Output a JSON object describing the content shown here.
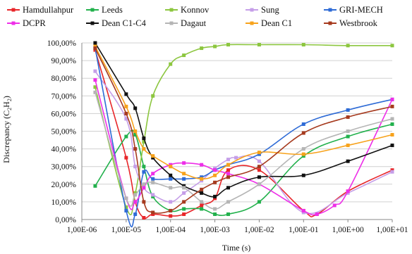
{
  "chart_data": {
    "type": "line",
    "xscale": "log",
    "xlabel": "Time (s)",
    "ylabel": "Discrepancy (C2H2)",
    "ylabel_main": "Discrepancy (C",
    "ylabel_sub": "2",
    "ylabel_mid": "H",
    "ylabel_sub2": "2",
    "ylabel_end": ")",
    "xlim": [
      1e-06,
      10
    ],
    "ylim": [
      0,
      100
    ],
    "grid": "horizontal",
    "legend_position": "top",
    "x_ticks": [
      {
        "v": 1e-06,
        "label": "1,00E-06"
      },
      {
        "v": 1e-05,
        "label": "1,00E-05"
      },
      {
        "v": 0.0001,
        "label": "1,00E-04"
      },
      {
        "v": 0.001,
        "label": "1,00E-03"
      },
      {
        "v": 0.01,
        "label": "1,00E-02"
      },
      {
        "v": 0.1,
        "label": "1,00E-01"
      },
      {
        "v": 1,
        "label": "1,00E+00"
      },
      {
        "v": 10,
        "label": "1,00E+01"
      }
    ],
    "y_ticks": [
      {
        "v": 0,
        "label": "0,00%"
      },
      {
        "v": 10,
        "label": "10,00%"
      },
      {
        "v": 20,
        "label": "20,00%"
      },
      {
        "v": 30,
        "label": "30,00%"
      },
      {
        "v": 40,
        "label": "40,00%"
      },
      {
        "v": 50,
        "label": "50,00%"
      },
      {
        "v": 60,
        "label": "60,00%"
      },
      {
        "v": 70,
        "label": "70,00%"
      },
      {
        "v": 80,
        "label": "80,00%"
      },
      {
        "v": 90,
        "label": "90,00%"
      },
      {
        "v": 100,
        "label": "100,00%"
      }
    ],
    "series": [
      {
        "name": "Hamdullahpur",
        "color": "#e8262a",
        "x": [
          2e-06,
          1e-05,
          1.6e-05,
          2.5e-05,
          4e-05,
          0.0001,
          0.0002,
          0.0005,
          0.001,
          0.002,
          0.01,
          0.1,
          0.2,
          1,
          10
        ],
        "y": [
          96,
          35,
          10,
          1,
          3,
          2,
          3,
          8,
          12,
          28,
          28,
          5,
          3,
          16,
          28
        ]
      },
      {
        "name": "Leeds",
        "color": "#22b14c",
        "x": [
          2e-06,
          1e-05,
          1.6e-05,
          2.5e-05,
          4e-05,
          0.0001,
          0.0002,
          0.0005,
          0.001,
          0.002,
          0.01,
          0.1,
          1,
          10
        ],
        "y": [
          19,
          47,
          48,
          30,
          13,
          5,
          6,
          6,
          3,
          3,
          10,
          36,
          47,
          54
        ]
      },
      {
        "name": "Konnov",
        "color": "#8cc63f",
        "x": [
          2e-06,
          1e-05,
          1.6e-05,
          2.5e-05,
          4e-05,
          0.0001,
          0.0002,
          0.0005,
          0.001,
          0.002,
          0.01,
          0.1,
          1,
          10
        ],
        "y": [
          75,
          7,
          15,
          44,
          70,
          88,
          93,
          97,
          98,
          99,
          99,
          99,
          98.5,
          98.5
        ]
      },
      {
        "name": "Sung",
        "color": "#c59ee8",
        "x": [
          2e-06,
          1e-05,
          1.6e-05,
          2.5e-05,
          4e-05,
          0.0001,
          0.0002,
          0.0005,
          0.001,
          0.002,
          0.003,
          0.01,
          0.1,
          1,
          10
        ],
        "y": [
          84,
          57,
          30,
          18,
          14,
          10,
          15,
          22,
          29,
          34,
          35,
          33,
          4,
          15,
          27
        ]
      },
      {
        "name": "GRI-MECH",
        "color": "#2e6bd6",
        "x": [
          2e-06,
          1e-05,
          1.6e-05,
          2.5e-05,
          4e-05,
          0.0001,
          0.0002,
          0.0005,
          0.001,
          0.002,
          0.01,
          0.1,
          1,
          10
        ],
        "y": [
          97,
          5,
          3,
          27,
          23,
          23,
          23,
          24,
          28,
          31,
          37,
          54,
          62,
          68
        ]
      },
      {
        "name": "DCPR",
        "color": "#ee2ee8",
        "x": [
          2e-06,
          1e-05,
          1.6e-05,
          2.5e-05,
          4e-05,
          0.0001,
          0.0002,
          0.0005,
          0.001,
          0.002,
          0.01,
          0.1,
          0.2,
          0.5,
          1,
          10
        ],
        "y": [
          79,
          12,
          10,
          18,
          26,
          31,
          32,
          31,
          28,
          26,
          20,
          5,
          3,
          8,
          16,
          68
        ]
      },
      {
        "name": "Dean C1-C4",
        "color": "#111111",
        "x": [
          2e-06,
          1e-05,
          1.6e-05,
          2.5e-05,
          4e-05,
          0.0001,
          0.0002,
          0.0005,
          0.001,
          0.002,
          0.01,
          0.1,
          1,
          10
        ],
        "y": [
          100,
          71,
          63,
          46,
          35,
          25,
          19,
          15,
          13,
          18,
          24,
          25,
          33,
          42
        ]
      },
      {
        "name": "Dagaut",
        "color": "#b5b5b5",
        "x": [
          2e-06,
          1e-05,
          1.6e-05,
          2.5e-05,
          4e-05,
          0.0001,
          0.0002,
          0.0005,
          0.001,
          0.002,
          0.01,
          0.1,
          1,
          10
        ],
        "y": [
          72,
          12,
          14,
          20,
          21,
          18,
          18,
          10,
          6,
          10,
          20,
          40,
          50,
          57
        ]
      },
      {
        "name": "Dean C1",
        "color": "#f7a21b",
        "x": [
          2e-06,
          1e-05,
          1.6e-05,
          2.5e-05,
          4e-05,
          0.0001,
          0.0002,
          0.0005,
          0.001,
          0.002,
          0.01,
          0.1,
          1,
          10
        ],
        "y": [
          98,
          64,
          50,
          40,
          36,
          30,
          26,
          23,
          25,
          31,
          38,
          37,
          42,
          48
        ]
      },
      {
        "name": "Westbrook",
        "color": "#a63a1e",
        "x": [
          2e-06,
          1e-05,
          1.6e-05,
          2.5e-05,
          4e-05,
          0.0001,
          0.0002,
          0.0005,
          0.001,
          0.002,
          0.01,
          0.1,
          1,
          10
        ],
        "y": [
          97,
          60,
          40,
          10,
          4,
          5,
          10,
          17,
          21,
          24,
          30,
          49,
          58,
          64
        ]
      }
    ]
  }
}
